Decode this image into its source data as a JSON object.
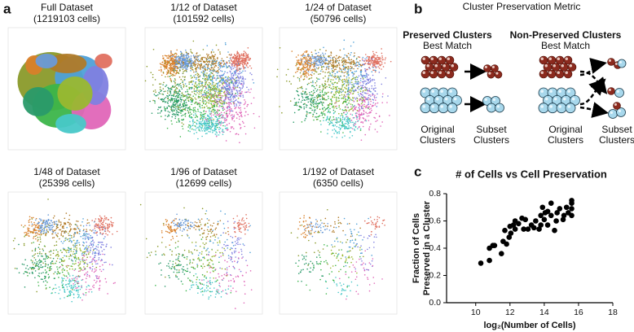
{
  "panel_a": {
    "label": "a",
    "plots": [
      {
        "title": "Full Dataset",
        "cells": "(1219103 cells)"
      },
      {
        "title": "1/12 of Dataset",
        "cells": "(101592 cells)"
      },
      {
        "title": "1/24 of Dataset",
        "cells": "(50796 cells)"
      },
      {
        "title": "1/48 of Dataset",
        "cells": "(25398 cells)"
      },
      {
        "title": "1/96 of Dataset",
        "cells": "(12699 cells)"
      },
      {
        "title": "1/192 of Dataset",
        "cells": "(6350 cells)"
      }
    ]
  },
  "panel_b": {
    "label": "b",
    "title": "Cluster Preservation Metric",
    "preserved": {
      "heading": "Preserved Clusters",
      "sub": "Best Match"
    },
    "non_preserved": {
      "heading": "Non-Preserved Clusters",
      "sub": "Best Match"
    },
    "original": [
      "Original",
      "Clusters"
    ],
    "subset": [
      "Subset",
      "Clusters"
    ]
  },
  "chart_data": {
    "type": "scatter",
    "label": "c",
    "title": "# of Cells vs Cell Preservation",
    "x_label": "log₂(Number of Cells)",
    "y_label": [
      "Fraction of Cells",
      "Preserved in a Cluster"
    ],
    "color": "#000000",
    "x": [
      10.3,
      10.8,
      10.8,
      11,
      11.1,
      11.5,
      11.6,
      11.7,
      11.8,
      11.95,
      12.05,
      12,
      12.2,
      12.3,
      12.3,
      12.5,
      12.7,
      12.9,
      12.8,
      13.05,
      13.25,
      13.4,
      13.5,
      13.7,
      13.8,
      13.9,
      13.8,
      14,
      14.05,
      14.2,
      14.2,
      14.4,
      14.4,
      14.6,
      14.7,
      14.75,
      14.9,
      15.1,
      15.15,
      15.3,
      15.4,
      15.6,
      15.6,
      15.6,
      15.6
    ],
    "y": [
      0.29,
      0.31,
      0.4,
      0.42,
      0.42,
      0.36,
      0.45,
      0.53,
      0.43,
      0.48,
      0.51,
      0.56,
      0.57,
      0.6,
      0.54,
      0.58,
      0.62,
      0.61,
      0.54,
      0.54,
      0.57,
      0.55,
      0.6,
      0.54,
      0.64,
      0.7,
      0.57,
      0.61,
      0.66,
      0.57,
      0.67,
      0.64,
      0.73,
      0.53,
      0.6,
      0.66,
      0.69,
      0.61,
      0.64,
      0.7,
      0.66,
      0.64,
      0.69,
      0.75,
      0.73
    ],
    "xlim": [
      8.3,
      18
    ],
    "xticks": [
      10,
      12,
      14,
      16,
      18
    ],
    "ylim": [
      0,
      0.8
    ],
    "yticks": [
      {
        "value": 0,
        "label": "0.0"
      },
      0.2,
      0.4,
      0.6,
      0.8
    ]
  }
}
